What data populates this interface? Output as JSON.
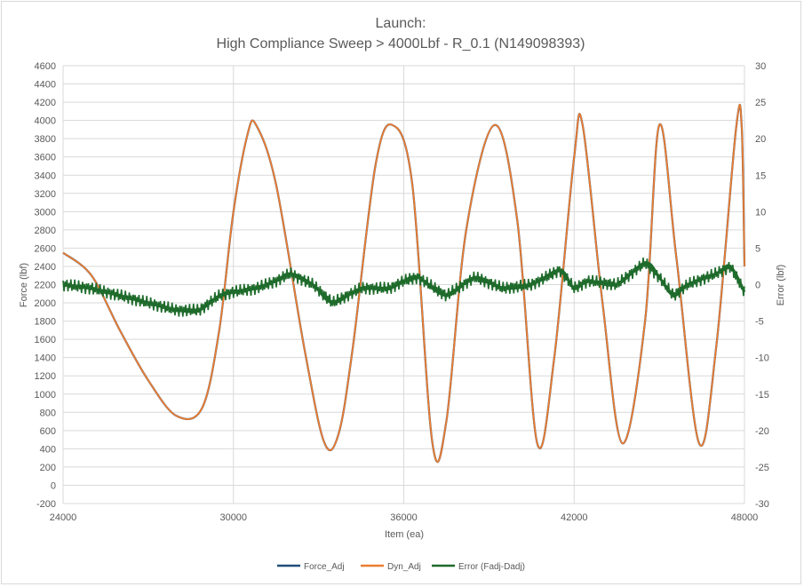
{
  "chart_data": {
    "type": "line",
    "title": "Launch:",
    "subtitle": "High Compliance Sweep > 4000Lbf - R_0.1 (N149098393)",
    "xlabel": "Item (ea)",
    "ylabel": "Force (lbf)",
    "y2label": "Error (lbf)",
    "xlim": [
      24000,
      48000
    ],
    "ylim": [
      -200,
      4600
    ],
    "y2lim": [
      -30,
      30
    ],
    "x_ticks": [
      "24000",
      "30000",
      "36000",
      "42000",
      "48000"
    ],
    "y_ticks": [
      "-200",
      "0",
      "200",
      "400",
      "600",
      "800",
      "1000",
      "1200",
      "1400",
      "1600",
      "1800",
      "2000",
      "2200",
      "2400",
      "2600",
      "2800",
      "3000",
      "3200",
      "3400",
      "3600",
      "3800",
      "4000",
      "4200",
      "4400",
      "4600"
    ],
    "y2_ticks": [
      "-30",
      "-25",
      "-20",
      "-15",
      "-10",
      "-5",
      "0",
      "5",
      "10",
      "15",
      "20",
      "25",
      "30"
    ],
    "grid": "vertical and horizontal major",
    "legend_position": "bottom",
    "series": [
      {
        "name": "Force_Adj",
        "axis": "left",
        "color": "#1f4e79",
        "note_values_same_as": "Dyn_Adj",
        "x": [
          24000,
          25000,
          26000,
          27000,
          28000,
          28900,
          29500,
          30000,
          30500,
          30800,
          31500,
          32500,
          33200,
          33700,
          34200,
          35000,
          35600,
          36300,
          37000,
          37500,
          38200,
          39200,
          40000,
          40700,
          41300,
          42000,
          42300,
          43000,
          43700,
          44500,
          45000,
          45600,
          46400,
          47000,
          47700,
          47900,
          48000
        ],
        "y": [
          2550,
          2300,
          1700,
          1150,
          760,
          850,
          1700,
          3000,
          3850,
          3950,
          3300,
          1500,
          470,
          560,
          1500,
          3500,
          3950,
          3300,
          480,
          700,
          2800,
          3950,
          2900,
          460,
          1400,
          3600,
          3950,
          2000,
          460,
          1800,
          3950,
          2500,
          460,
          1500,
          3900,
          3950,
          2400
        ]
      },
      {
        "name": "Dyn_Adj",
        "axis": "left",
        "color": "#ed7d31",
        "x": [
          24000,
          25000,
          26000,
          27000,
          28000,
          28900,
          29500,
          30000,
          30500,
          30800,
          31500,
          32500,
          33200,
          33700,
          34200,
          35000,
          35600,
          36300,
          37000,
          37500,
          38200,
          39200,
          40000,
          40700,
          41300,
          42000,
          42300,
          43000,
          43700,
          44500,
          45000,
          45600,
          46400,
          47000,
          47700,
          47900,
          48000
        ],
        "y": [
          2550,
          2300,
          1700,
          1150,
          760,
          850,
          1700,
          3000,
          3850,
          3950,
          3300,
          1500,
          470,
          560,
          1500,
          3500,
          3950,
          3300,
          480,
          700,
          2800,
          3950,
          2900,
          460,
          1400,
          3600,
          3950,
          2000,
          460,
          1800,
          3950,
          2500,
          460,
          1500,
          3900,
          3950,
          2400
        ]
      },
      {
        "name": "Error (Fadj-Dadj)",
        "axis": "right",
        "color": "#1e6b2b",
        "x": [
          24000,
          25000,
          26000,
          27000,
          28000,
          28800,
          29500,
          30000,
          30800,
          31500,
          32000,
          32800,
          33500,
          34500,
          35500,
          36000,
          36500,
          37500,
          38500,
          39500,
          40500,
          41500,
          42000,
          42500,
          43500,
          44500,
          45000,
          45500,
          46000,
          47000,
          47500,
          48000
        ],
        "y": [
          0,
          -0.5,
          -1.5,
          -2.5,
          -3.5,
          -3.5,
          -1.5,
          -1,
          -0.5,
          0.5,
          1.5,
          0,
          -2.5,
          -0.5,
          -0.5,
          0.5,
          1,
          -1.5,
          1,
          -0.5,
          0,
          2,
          -0.5,
          0.5,
          0,
          3,
          1,
          -1.5,
          0,
          1.5,
          2.5,
          -1
        ]
      }
    ]
  }
}
